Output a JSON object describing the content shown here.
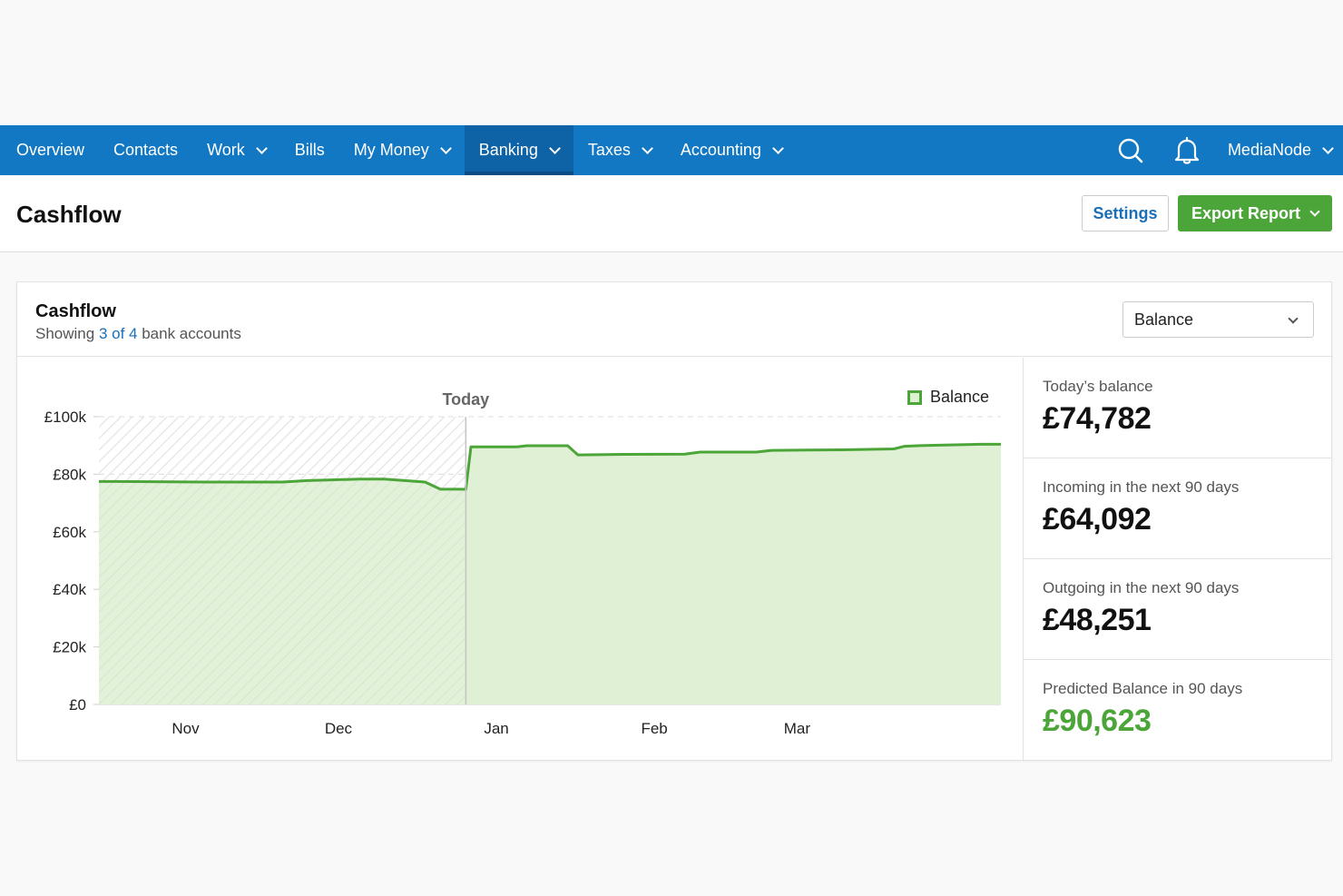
{
  "nav": {
    "items": [
      {
        "label": "Overview",
        "dropdown": false,
        "active": false
      },
      {
        "label": "Contacts",
        "dropdown": false,
        "active": false
      },
      {
        "label": "Work",
        "dropdown": true,
        "active": false
      },
      {
        "label": "Bills",
        "dropdown": false,
        "active": false
      },
      {
        "label": "My Money",
        "dropdown": true,
        "active": false
      },
      {
        "label": "Banking",
        "dropdown": true,
        "active": true
      },
      {
        "label": "Taxes",
        "dropdown": true,
        "active": false
      },
      {
        "label": "Accounting",
        "dropdown": true,
        "active": false
      }
    ],
    "search_icon": "search-icon",
    "notifications_icon": "bell-icon",
    "org_name": "MediaNode"
  },
  "header": {
    "title": "Cashflow",
    "settings_label": "Settings",
    "export_label": "Export Report"
  },
  "card": {
    "title": "Cashflow",
    "subtitle_prefix": "Showing ",
    "subtitle_link": "3 of 4",
    "subtitle_suffix": " bank accounts",
    "view_select": "Balance"
  },
  "chart_data": {
    "type": "area",
    "legend": "Balance",
    "legend_position": "top-right",
    "today_label": "Today",
    "y_ticks": [
      "£0",
      "£20k",
      "£40k",
      "£60k",
      "£80k",
      "£100k"
    ],
    "ylim": [
      0,
      100000
    ],
    "x_ticks": [
      "Nov",
      "Dec",
      "Jan",
      "Feb",
      "Mar"
    ],
    "grid": true,
    "colors": {
      "line": "#4ca538",
      "fill": "#dff0d5"
    },
    "series": [
      {
        "name": "Balance",
        "points": [
          {
            "date": "2018-10-15",
            "value": 77500
          },
          {
            "date": "2018-11-05",
            "value": 77300
          },
          {
            "date": "2018-11-20",
            "value": 77300
          },
          {
            "date": "2018-11-25",
            "value": 77800
          },
          {
            "date": "2018-12-05",
            "value": 78300
          },
          {
            "date": "2018-12-10",
            "value": 78300
          },
          {
            "date": "2018-12-18",
            "value": 77300
          },
          {
            "date": "2018-12-21",
            "value": 74800
          },
          {
            "date": "2018-12-26",
            "value": 74782
          },
          {
            "date": "2018-12-27",
            "value": 89500
          },
          {
            "date": "2019-01-05",
            "value": 89500
          },
          {
            "date": "2019-01-07",
            "value": 89900
          },
          {
            "date": "2019-01-15",
            "value": 89900
          },
          {
            "date": "2019-01-17",
            "value": 86700
          },
          {
            "date": "2019-01-26",
            "value": 86900
          },
          {
            "date": "2019-02-07",
            "value": 87000
          },
          {
            "date": "2019-02-10",
            "value": 87700
          },
          {
            "date": "2019-02-21",
            "value": 87700
          },
          {
            "date": "2019-02-24",
            "value": 88300
          },
          {
            "date": "2019-03-10",
            "value": 88500
          },
          {
            "date": "2019-03-20",
            "value": 88800
          },
          {
            "date": "2019-03-22",
            "value": 89700
          },
          {
            "date": "2019-03-26",
            "value": 90000
          },
          {
            "date": "2019-04-06",
            "value": 90400
          },
          {
            "date": "2019-04-10",
            "value": 90400
          }
        ]
      }
    ]
  },
  "stats": [
    {
      "label": "Today’s balance",
      "value": "£74,782",
      "color": "#111111"
    },
    {
      "label": "Incoming in the next 90 days",
      "value": "£64,092",
      "color": "#111111"
    },
    {
      "label": "Outgoing in the next 90 days",
      "value": "£48,251",
      "color": "#111111"
    },
    {
      "label": "Predicted Balance in 90 days",
      "value": "£90,623",
      "color": "#4ca538"
    }
  ]
}
